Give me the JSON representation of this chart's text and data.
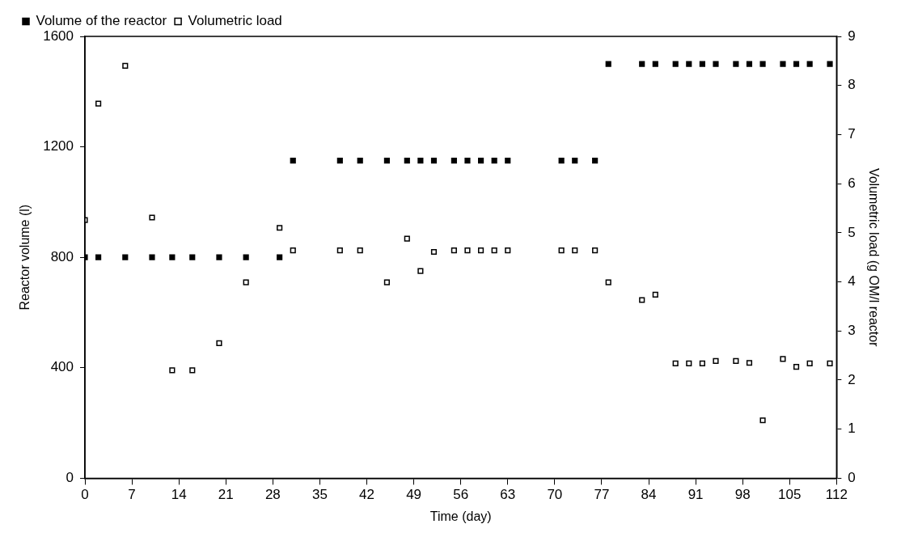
{
  "chart_data": {
    "type": "scatter",
    "xlabel": "Time (day)",
    "ylabel": "Reactor volume (l)",
    "y2label": "Volumetric load (g OM/l reactor",
    "xlim": [
      0,
      112
    ],
    "xticks": [
      0,
      7,
      14,
      21,
      28,
      35,
      42,
      49,
      56,
      63,
      70,
      77,
      84,
      91,
      98,
      105,
      112
    ],
    "ylim": [
      0,
      1600
    ],
    "yticks": [
      0,
      400,
      800,
      1200,
      1600
    ],
    "y2lim": [
      0,
      9
    ],
    "y2ticks": [
      0,
      1,
      2,
      3,
      4,
      5,
      6,
      7,
      8,
      9
    ],
    "grid": false,
    "legend": "top left",
    "marker": "square",
    "series": [
      {
        "name": "Volume of the reactor",
        "color": "#000000",
        "x": [
          0,
          2,
          6,
          10,
          13,
          16,
          20,
          24,
          29,
          31,
          38,
          41,
          45,
          48,
          50,
          52,
          55,
          57,
          59,
          61,
          63,
          71,
          73,
          76,
          78,
          83,
          85,
          88,
          90,
          92,
          94,
          97,
          99,
          101,
          104,
          106,
          108,
          111
        ],
        "values": [
          800,
          800,
          800,
          800,
          800,
          800,
          800,
          800,
          800,
          1150,
          1150,
          1150,
          1150,
          1150,
          1150,
          1150,
          1150,
          1150,
          1150,
          1150,
          1150,
          1150,
          1150,
          1150,
          1500,
          1500,
          1500,
          1500,
          1500,
          1500,
          1500,
          1500,
          1500,
          1500,
          1500,
          1500,
          1500,
          1500
        ]
      },
      {
        "name": "Volumetric load",
        "color": "#000000",
        "axis": "y2",
        "x": [
          0,
          2,
          6,
          10,
          13,
          16,
          20,
          24,
          29,
          31,
          38,
          41,
          45,
          48,
          50,
          52,
          55,
          57,
          59,
          61,
          63,
          71,
          73,
          76,
          78,
          83,
          85,
          88,
          90,
          92,
          94,
          97,
          99,
          101,
          104,
          106,
          108,
          111
        ],
        "values": [
          5.26,
          7.63,
          8.4,
          5.31,
          2.2,
          2.2,
          2.75,
          3.99,
          5.1,
          4.64,
          4.64,
          4.64,
          3.99,
          4.88,
          4.22,
          4.61,
          4.64,
          4.64,
          4.64,
          4.64,
          4.64,
          4.64,
          4.64,
          4.64,
          3.99,
          3.63,
          3.74,
          2.34,
          2.34,
          2.34,
          2.39,
          2.39,
          2.35,
          1.18,
          2.43,
          2.27,
          2.34,
          2.34
        ]
      }
    ]
  }
}
